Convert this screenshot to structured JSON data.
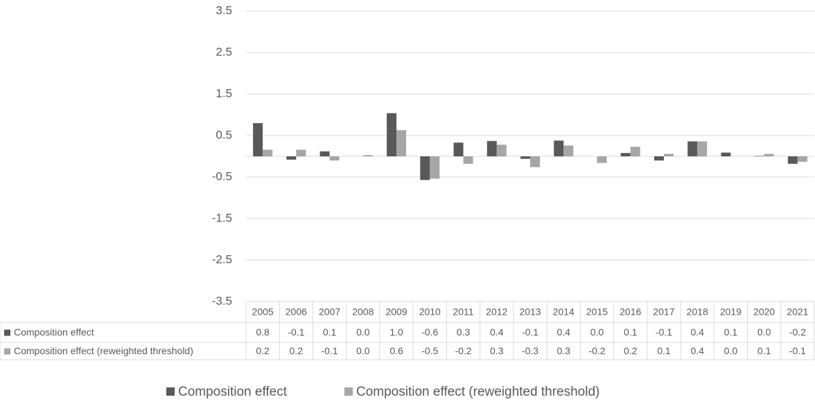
{
  "chart_data": {
    "type": "bar",
    "categories": [
      "2005",
      "2006",
      "2007",
      "2008",
      "2009",
      "2010",
      "2011",
      "2012",
      "2013",
      "2014",
      "2015",
      "2016",
      "2017",
      "2018",
      "2019",
      "2020",
      "2021"
    ],
    "series": [
      {
        "name": "Composition effect",
        "color": "#595959",
        "values": [
          0.8,
          -0.08,
          0.12,
          0,
          1.04,
          -0.57,
          0.33,
          0.37,
          -0.06,
          0.38,
          0,
          0.08,
          -0.1,
          0.36,
          0.09,
          0.01,
          -0.18
        ],
        "value_labels": [
          "0.8",
          "-0.1",
          "0.1",
          "0.0",
          "1.0",
          "-0.6",
          "0.3",
          "0.4",
          "-0.1",
          "0.4",
          "0.0",
          "0.1",
          "-0.1",
          "0.4",
          "0.1",
          "0.0",
          "-0.2"
        ]
      },
      {
        "name": "Composition effect (reweighted threshold)",
        "color": "#a6a6a6",
        "values": [
          0.16,
          0.16,
          -0.1,
          0.03,
          0.63,
          -0.54,
          -0.18,
          0.28,
          -0.26,
          0.26,
          -0.16,
          0.23,
          0.06,
          0.36,
          0,
          0.06,
          -0.13
        ],
        "value_labels": [
          "0.2",
          "0.2",
          "-0.1",
          "0.0",
          "0.6",
          "-0.5",
          "-0.2",
          "0.3",
          "-0.3",
          "0.3",
          "-0.2",
          "0.2",
          "0.1",
          "0.4",
          "0.0",
          "0.1",
          "-0.1"
        ]
      }
    ],
    "ylim": [
      -3.5,
      3.5
    ],
    "yticks": [
      3.5,
      2.5,
      1.5,
      0.5,
      -0.5,
      -1.5,
      -2.5,
      -3.5
    ],
    "grid": true
  }
}
